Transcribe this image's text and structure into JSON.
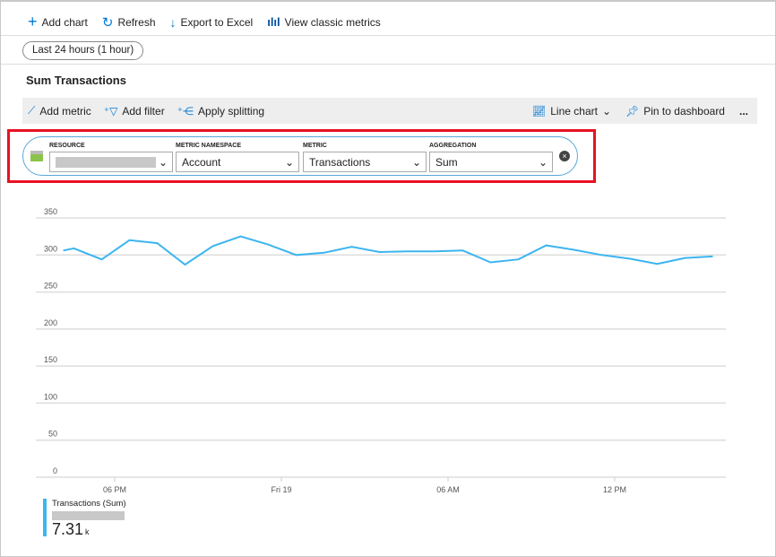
{
  "topbar": {
    "add_chart": "Add chart",
    "refresh": "Refresh",
    "export": "Export to Excel",
    "classic": "View classic metrics"
  },
  "time_range": "Last 24 hours (1 hour)",
  "chart_title": "Sum Transactions",
  "toolbar": {
    "add_metric": "Add metric",
    "add_filter": "Add filter",
    "apply_splitting": "Apply splitting",
    "chart_type": "Line chart",
    "pin": "Pin to dashboard",
    "more": "..."
  },
  "selector": {
    "resource_label": "RESOURCE",
    "namespace_label": "METRIC NAMESPACE",
    "namespace_value": "Account",
    "metric_label": "METRIC",
    "metric_value": "Transactions",
    "aggregation_label": "AGGREGATION",
    "aggregation_value": "Sum"
  },
  "legend": {
    "name": "Transactions (Sum)",
    "value": "7.31",
    "unit": "k",
    "color": "#3db5f0"
  },
  "chart_data": {
    "type": "line",
    "ylim": [
      0,
      350
    ],
    "yticks": [
      0,
      50,
      100,
      150,
      200,
      250,
      300,
      350
    ],
    "xticks": [
      {
        "label": "06 PM",
        "t": "Thu 18 18:00"
      },
      {
        "label": "Fri 19",
        "t": "Fri 19 00:00"
      },
      {
        "label": "06 AM",
        "t": "Fri 19 06:00"
      },
      {
        "label": "12 PM",
        "t": "Fri 19 12:00"
      }
    ],
    "grid": true,
    "series": [
      {
        "color": "#3db5f0",
        "points": [
          [
            "Thu 18 16:09",
            306
          ],
          [
            "Thu 18 16:32",
            309
          ],
          [
            "Thu 18 17:32",
            294
          ],
          [
            "Thu 18 18:32",
            320
          ],
          [
            "Thu 18 19:32",
            316
          ],
          [
            "Thu 18 20:32",
            287
          ],
          [
            "Thu 18 21:32",
            312
          ],
          [
            "Thu 18 22:32",
            325
          ],
          [
            "Thu 18 23:32",
            314
          ],
          [
            "Fri 19 00:32",
            300
          ],
          [
            "Fri 19 01:32",
            303
          ],
          [
            "Fri 19 02:32",
            311
          ],
          [
            "Fri 19 03:32",
            304
          ],
          [
            "Fri 19 04:32",
            305
          ],
          [
            "Fri 19 05:32",
            305
          ],
          [
            "Fri 19 06:32",
            306
          ],
          [
            "Fri 19 07:32",
            290
          ],
          [
            "Fri 19 08:32",
            294
          ],
          [
            "Fri 19 09:32",
            313
          ],
          [
            "Fri 19 10:32",
            307
          ],
          [
            "Fri 19 11:32",
            300
          ],
          [
            "Fri 19 12:32",
            295
          ],
          [
            "Fri 19 13:32",
            288
          ],
          [
            "Fri 19 14:32",
            296
          ],
          [
            "Fri 19 15:32",
            298
          ]
        ]
      }
    ]
  }
}
